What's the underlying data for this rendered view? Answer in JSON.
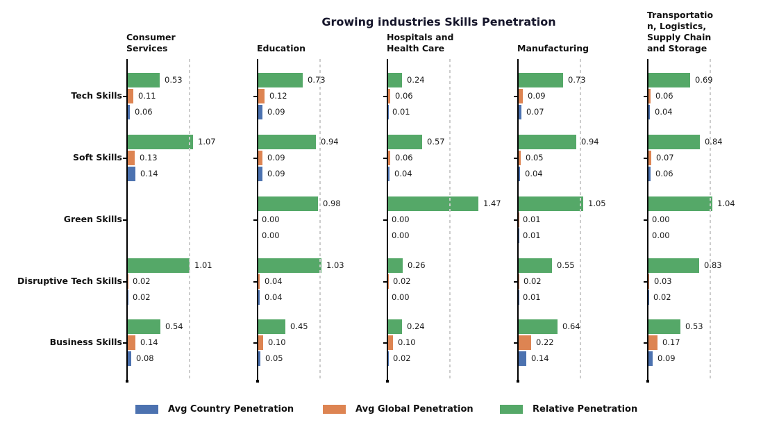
{
  "chart_data": {
    "type": "bar",
    "orientation": "horizontal",
    "title": "Growing industries Skills Penetration",
    "categories": [
      "Tech Skills",
      "Soft Skills",
      "Green Skills",
      "Disruptive Tech Skills",
      "Business Skills"
    ],
    "series_order": [
      "relative_penetration",
      "avg_global_penetration",
      "avg_country_penetration"
    ],
    "legend_order": [
      "avg_country_penetration",
      "avg_global_penetration",
      "relative_penetration"
    ],
    "series_meta": {
      "relative_penetration": {
        "label": "Relative Penetration",
        "color": "#55A868"
      },
      "avg_global_penetration": {
        "label": "Avg Global Penetration",
        "color": "#DD8452"
      },
      "avg_country_penetration": {
        "label": "Avg Country Penetration",
        "color": "#4C72B0"
      }
    },
    "reference_line_x": 1.0,
    "xlim": [
      0,
      2.05
    ],
    "grid": "dashed-vertical-at-1.0",
    "legend_position": "bottom",
    "axis_color": "#000000",
    "grid_color": "#cccccc",
    "panels": [
      {
        "title": "Consumer\nServices",
        "series": {
          "relative_penetration": [
            0.53,
            1.07,
            null,
            1.01,
            0.54
          ],
          "avg_global_penetration": [
            0.11,
            0.13,
            null,
            0.02,
            0.14
          ],
          "avg_country_penetration": [
            0.06,
            0.14,
            null,
            0.02,
            0.08
          ]
        }
      },
      {
        "title": "Education",
        "series": {
          "relative_penetration": [
            0.73,
            0.94,
            0.98,
            1.03,
            0.45
          ],
          "avg_global_penetration": [
            0.12,
            0.09,
            0.0,
            0.04,
            0.1
          ],
          "avg_country_penetration": [
            0.09,
            0.09,
            0.0,
            0.04,
            0.05
          ]
        }
      },
      {
        "title": "Hospitals and\nHealth Care",
        "series": {
          "relative_penetration": [
            0.24,
            0.57,
            1.47,
            0.26,
            0.24
          ],
          "avg_global_penetration": [
            0.06,
            0.06,
            0.0,
            0.02,
            0.1
          ],
          "avg_country_penetration": [
            0.01,
            0.04,
            0.0,
            0.0,
            0.02
          ]
        }
      },
      {
        "title": "Manufacturing",
        "series": {
          "relative_penetration": [
            0.73,
            0.94,
            1.05,
            0.55,
            0.64
          ],
          "avg_global_penetration": [
            0.09,
            0.05,
            0.01,
            0.02,
            0.22
          ],
          "avg_country_penetration": [
            0.07,
            0.04,
            0.01,
            0.01,
            0.14
          ]
        }
      },
      {
        "title": "Transportatio\nn, Logistics,\nSupply Chain\nand Storage",
        "series": {
          "relative_penetration": [
            0.69,
            0.84,
            1.04,
            0.83,
            0.53
          ],
          "avg_global_penetration": [
            0.06,
            0.07,
            0.0,
            0.03,
            0.17
          ],
          "avg_country_penetration": [
            0.04,
            0.06,
            0.0,
            0.02,
            0.09
          ]
        }
      }
    ],
    "value_label_format": "2-decimals"
  }
}
